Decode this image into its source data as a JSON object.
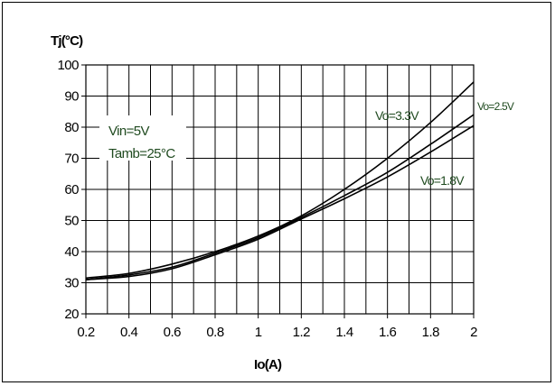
{
  "chart_data": {
    "type": "line",
    "xlabel": "Io(A)",
    "ylabel": "Tj(°C)",
    "xlim": [
      0.2,
      2.0
    ],
    "ylim": [
      20,
      100
    ],
    "xticks": [
      0.2,
      0.4,
      0.6,
      0.8,
      1.0,
      1.2,
      1.4,
      1.6,
      1.8,
      2.0
    ],
    "xtick_labels": [
      "0.2",
      "0.4",
      "0.6",
      "0.8",
      "1",
      "1.2",
      "1.4",
      "1.6",
      "1.8",
      "2"
    ],
    "yticks": [
      20,
      30,
      40,
      50,
      60,
      70,
      80,
      90,
      100
    ],
    "grid": true,
    "annotations": [
      "Vin=5V",
      "Tamb=25°C"
    ],
    "series": [
      {
        "name": "Vo=3.3V",
        "x": [
          0.2,
          0.4,
          0.6,
          0.8,
          1.0,
          1.2,
          1.4,
          1.6,
          1.8,
          2.0
        ],
        "y": [
          31.5,
          33,
          36,
          40,
          45,
          51.5,
          60,
          70,
          81.5,
          94.5
        ]
      },
      {
        "name": "Vo=2.5V",
        "x": [
          0.2,
          0.4,
          0.6,
          0.8,
          1.0,
          1.2,
          1.4,
          1.6,
          1.8,
          2.0
        ],
        "y": [
          31,
          32.5,
          35,
          39.5,
          44.5,
          51,
          58,
          65.5,
          74.5,
          84
        ]
      },
      {
        "name": "Vo=1.8V",
        "x": [
          0.2,
          0.4,
          0.6,
          0.8,
          1.0,
          1.2,
          1.4,
          1.6,
          1.8,
          2.0
        ],
        "y": [
          31,
          32,
          34.5,
          39,
          44,
          50.5,
          57,
          64,
          72,
          80.5
        ]
      }
    ]
  }
}
